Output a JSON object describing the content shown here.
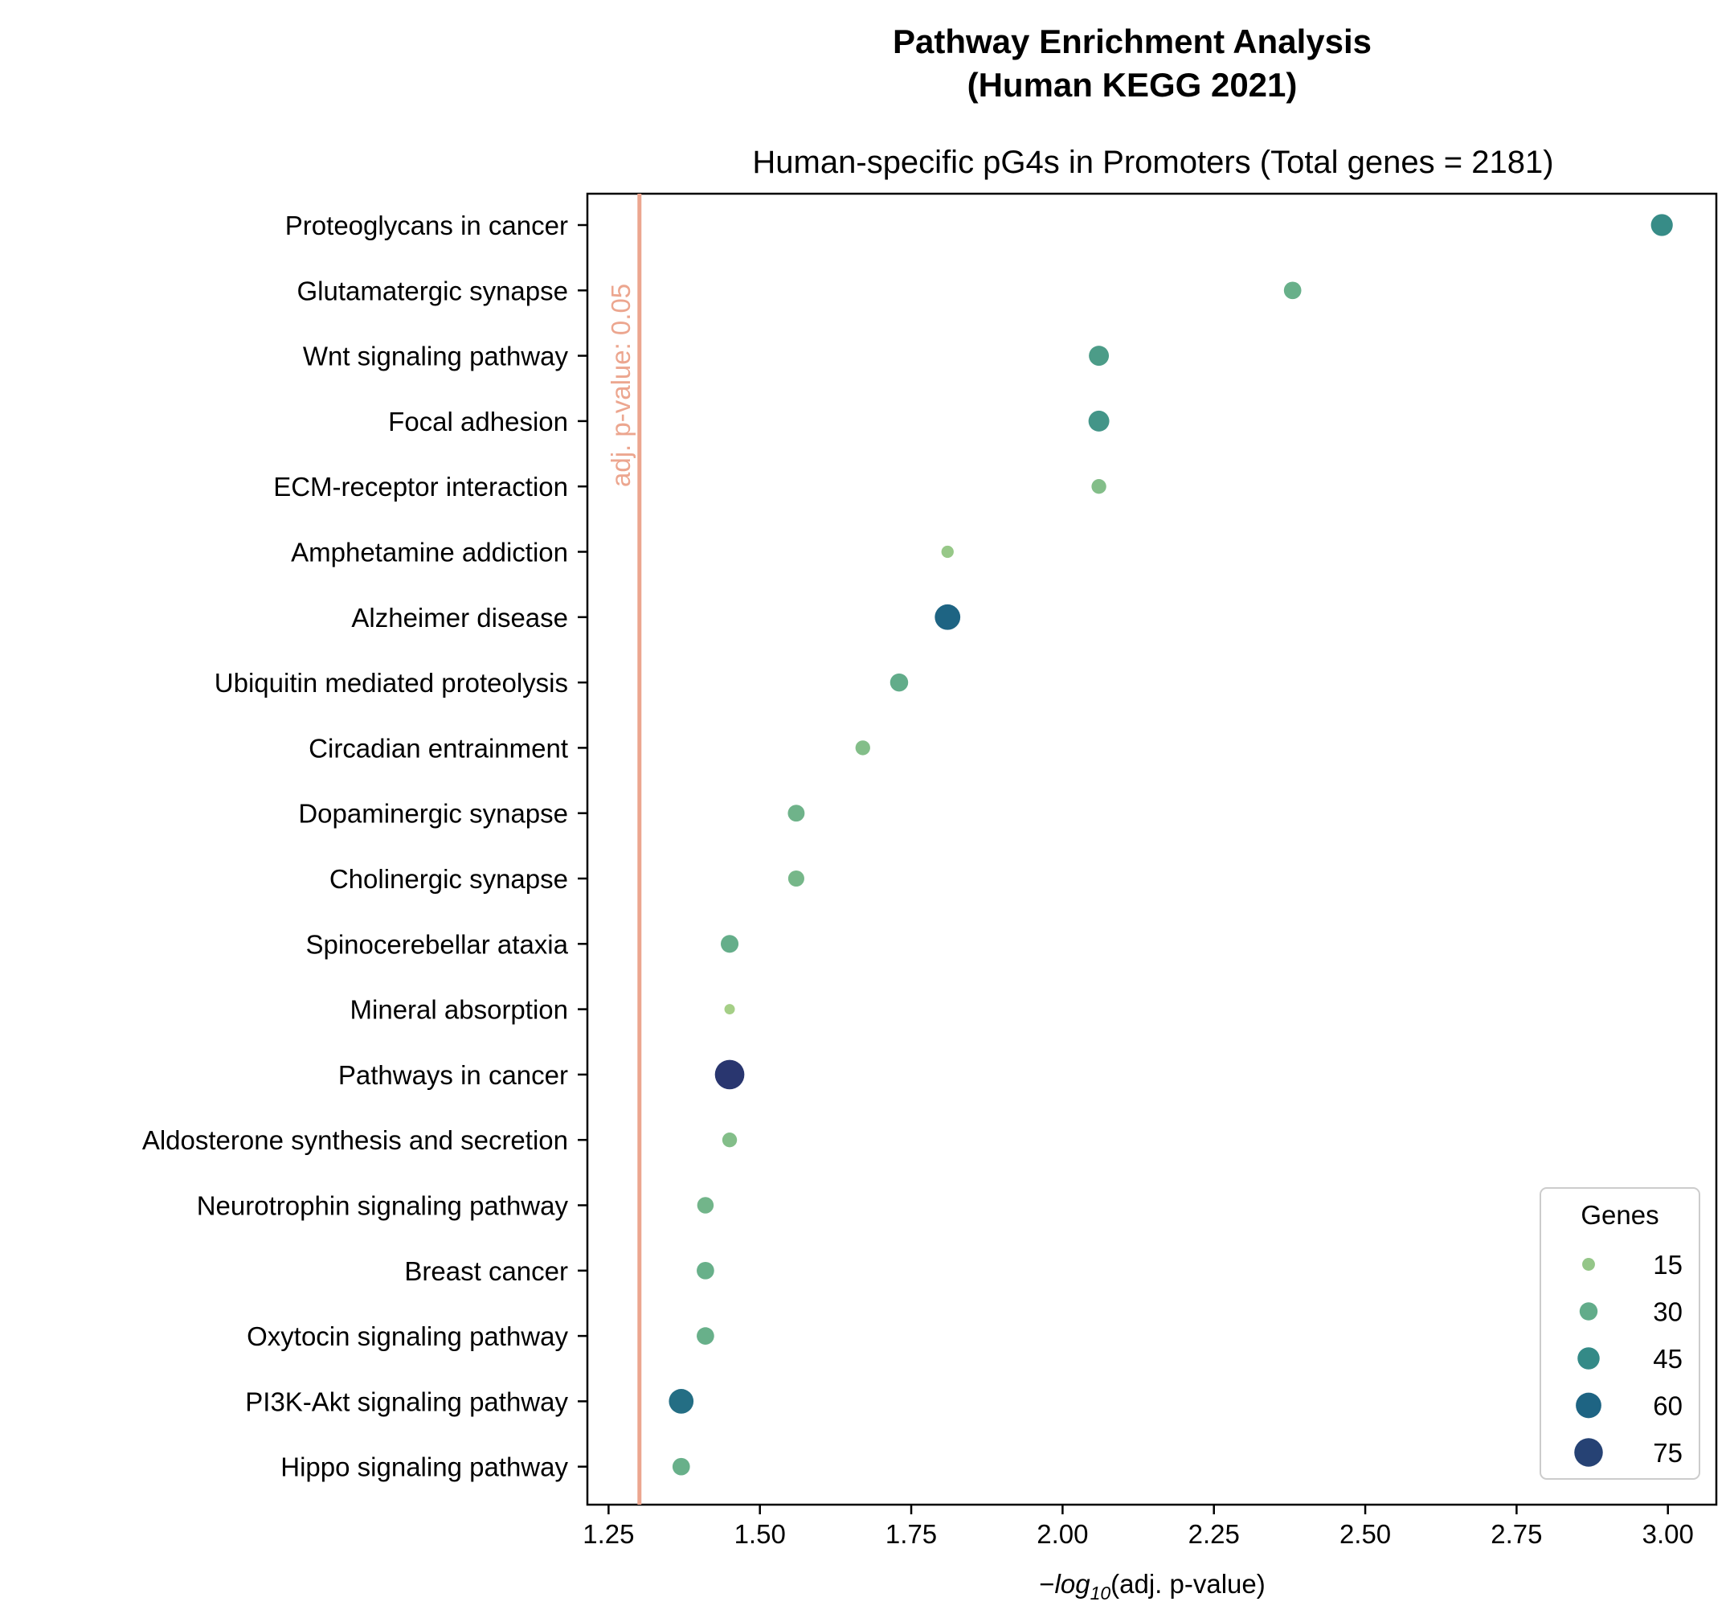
{
  "chart_data": {
    "type": "scatter",
    "suptitle_line1": "Pathway Enrichment Analysis",
    "suptitle_line2": "(Human KEGG 2021)",
    "title": "Human-specific pG4s in Promoters (Total genes = 2181)",
    "xlabel_prefix": "−",
    "xlabel_log": "log",
    "xlabel_sub": "10",
    "xlabel_suffix": "(adj. p-value)",
    "xlim": [
      1.215,
      3.08
    ],
    "xticks": [
      "1.25",
      "1.50",
      "1.75",
      "2.00",
      "2.25",
      "2.50",
      "2.75",
      "3.00"
    ],
    "grid": false,
    "threshold": {
      "x": 1.301,
      "label": "adj. p-value: 0.05",
      "color": "#eca68f"
    },
    "categories": [
      "Proteoglycans in cancer",
      "Glutamatergic synapse",
      "Wnt signaling pathway",
      "Focal adhesion",
      "ECM-receptor interaction",
      "Amphetamine addiction",
      "Alzheimer disease",
      "Ubiquitin mediated proteolysis",
      "Circadian entrainment",
      "Dopaminergic synapse",
      "Cholinergic synapse",
      "Spinocerebellar ataxia",
      "Mineral absorption",
      "Pathways in cancer",
      "Aldosterone synthesis and secretion",
      "Neurotrophin signaling pathway",
      "Breast cancer",
      "Oxytocin signaling pathway",
      "PI3K-Akt signaling pathway",
      "Hippo signaling pathway"
    ],
    "x": [
      2.99,
      2.38,
      2.06,
      2.06,
      2.06,
      1.81,
      1.81,
      1.73,
      1.67,
      1.56,
      1.56,
      1.45,
      1.45,
      1.45,
      1.45,
      1.41,
      1.41,
      1.41,
      1.37,
      1.37
    ],
    "genes": [
      44,
      28,
      37,
      40,
      20,
      14,
      60,
      30,
      20,
      26,
      24,
      29,
      10,
      80,
      20,
      25,
      28,
      28,
      56,
      28
    ],
    "legend": {
      "title": "Genes",
      "position": "lower-right",
      "entries": [
        "15",
        "30",
        "45",
        "60",
        "75"
      ],
      "values": [
        15,
        30,
        45,
        60,
        75
      ]
    },
    "colors": {
      "low": "#a5cf87",
      "mid_low": "#68b08a",
      "mid": "#348a87",
      "mid_high": "#1e6483",
      "high": "#29366f"
    }
  }
}
